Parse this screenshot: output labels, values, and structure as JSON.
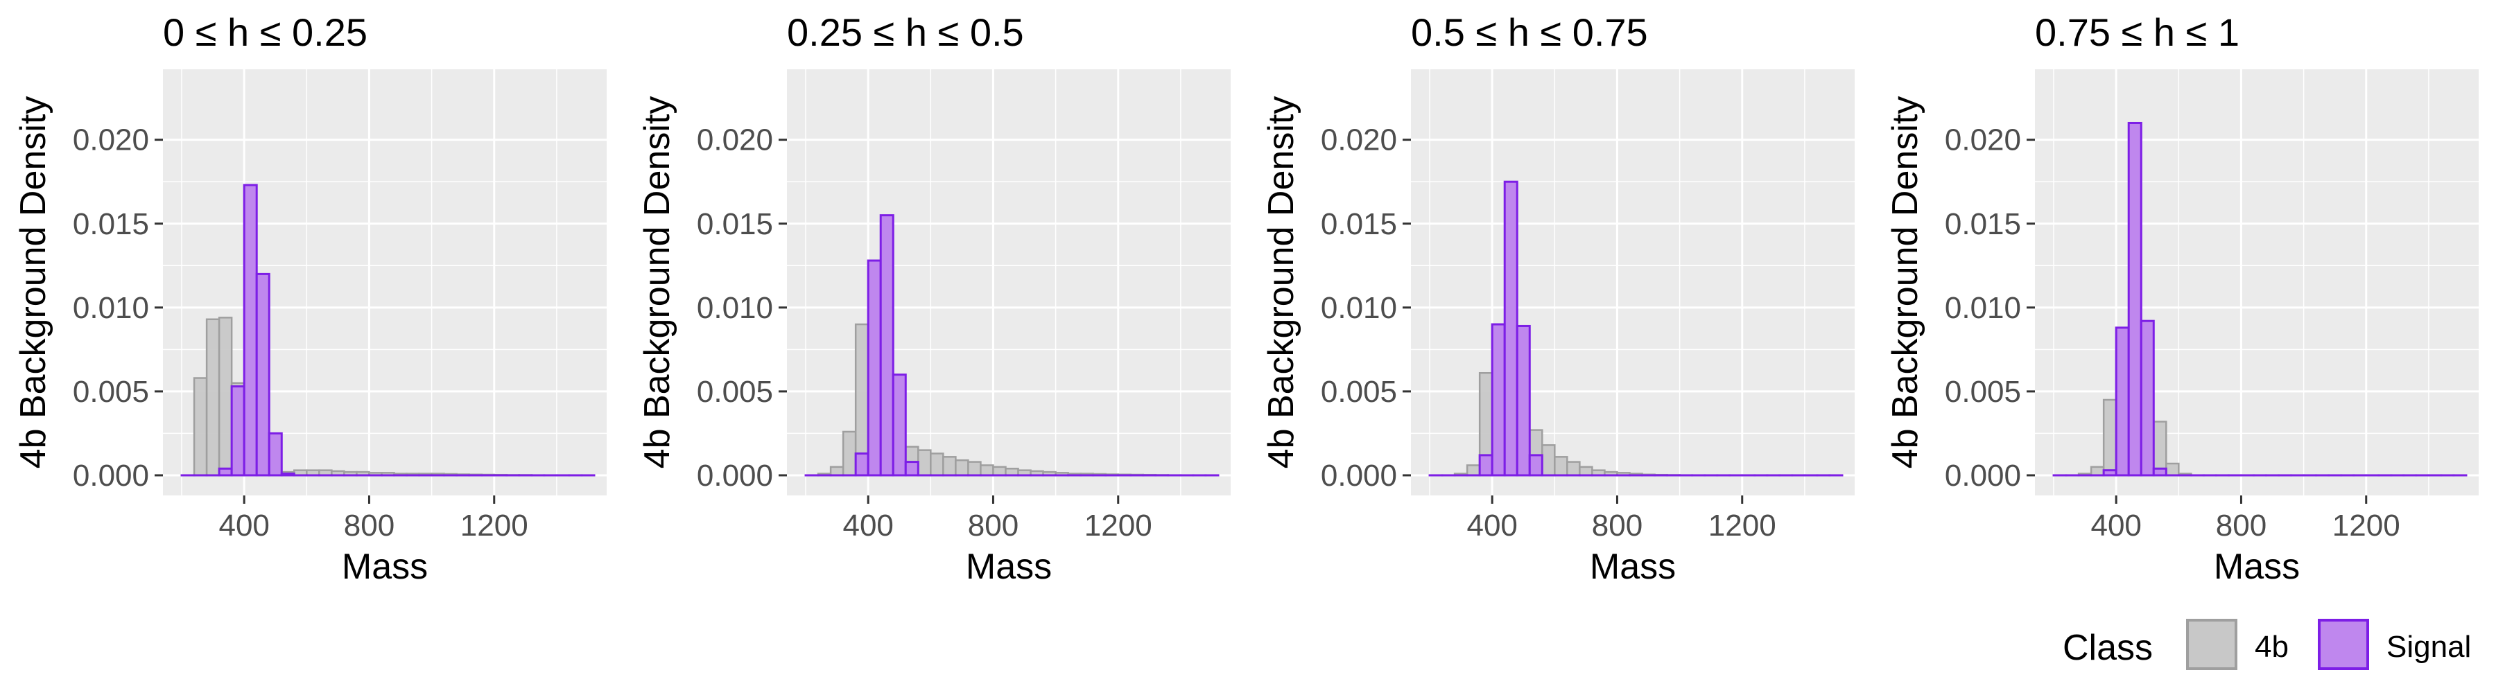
{
  "chart_data": {
    "type": "bar",
    "subtype": "faceted-histogram",
    "xlabel": "Mass",
    "ylabel": "4b Background Density",
    "xlim": [
      140,
      1560
    ],
    "ylim": [
      -0.0012,
      0.0242
    ],
    "xticks": [
      400,
      800,
      1200
    ],
    "xtick_labels": [
      "400",
      "800",
      "1200"
    ],
    "yticks": [
      0.0,
      0.005,
      0.01,
      0.015,
      0.02
    ],
    "ytick_labels": [
      "0.000",
      "0.005",
      "0.010",
      "0.015",
      "0.020"
    ],
    "grid": true,
    "bin_start": 200,
    "bin_width": 40,
    "colors": {
      "panel_bg": "#ebebeb",
      "grid": "#ffffff",
      "bg_fill": "#c8c8c8",
      "bg_stroke": "#9f9f9f",
      "sig_fill": "#bf87ee",
      "sig_stroke": "#7d1ee6"
    },
    "legend": {
      "title": "Class",
      "placement": "bottom-right",
      "entries": [
        {
          "label": "4b",
          "fill": "#c8c8c8",
          "stroke": "#9f9f9f"
        },
        {
          "label": "Signal",
          "fill": "#bf87ee",
          "stroke": "#7d1ee6"
        }
      ]
    },
    "panels": [
      {
        "title": "0 ≤ h ≤ 0.25",
        "series": [
          {
            "name": "4b",
            "values": [
              0.0,
              0.0058,
              0.0093,
              0.0094,
              0.0055,
              0.0025,
              0.0008,
              0.0003,
              0.0002,
              0.0003,
              0.0003,
              0.0003,
              0.00025,
              0.0002,
              0.0002,
              0.00015,
              0.00015,
              0.0001,
              0.0001,
              0.0001,
              0.0001,
              8e-05,
              6e-05,
              5e-05,
              4e-05,
              3e-05,
              2e-05,
              2e-05,
              1e-05,
              0.0,
              0.0,
              0.0,
              0.0
            ]
          },
          {
            "name": "Signal",
            "values": [
              0.0,
              0.0,
              0.0,
              0.0004,
              0.0053,
              0.0173,
              0.012,
              0.0025,
              0.0001,
              0.0,
              0.0,
              0.0,
              0.0,
              0.0,
              0.0,
              0.0,
              0.0,
              0.0,
              0.0,
              0.0,
              0.0,
              0.0,
              0.0,
              0.0,
              0.0,
              0.0,
              0.0,
              0.0,
              0.0,
              0.0,
              0.0,
              0.0,
              0.0
            ]
          }
        ]
      },
      {
        "title": "0.25 ≤ h ≤ 0.5",
        "series": [
          {
            "name": "4b",
            "values": [
              0.0,
              0.0001,
              0.0005,
              0.0026,
              0.009,
              0.0068,
              0.0032,
              0.002,
              0.0017,
              0.0015,
              0.0013,
              0.0011,
              0.0009,
              0.0008,
              0.0006,
              0.0005,
              0.0004,
              0.0003,
              0.00025,
              0.0002,
              0.00015,
              0.0001,
              0.0001,
              8e-05,
              6e-05,
              5e-05,
              4e-05,
              3e-05,
              2e-05,
              1e-05,
              0.0,
              0.0,
              0.0
            ]
          },
          {
            "name": "Signal",
            "values": [
              0.0,
              0.0,
              0.0,
              0.0,
              0.0013,
              0.0128,
              0.0155,
              0.006,
              0.0008,
              0.0,
              0.0,
              0.0,
              0.0,
              0.0,
              0.0,
              0.0,
              0.0,
              0.0,
              0.0,
              0.0,
              0.0,
              0.0,
              0.0,
              0.0,
              0.0,
              0.0,
              0.0,
              0.0,
              0.0,
              0.0,
              0.0,
              0.0,
              0.0
            ]
          }
        ]
      },
      {
        "title": "0.5 ≤ h ≤ 0.75",
        "series": [
          {
            "name": "4b",
            "values": [
              0.0,
              0.0,
              0.0001,
              0.0006,
              0.0061,
              0.0068,
              0.0052,
              0.0037,
              0.0027,
              0.0018,
              0.0011,
              0.0008,
              0.0005,
              0.0003,
              0.0002,
              0.00015,
              0.0001,
              5e-05,
              3e-05,
              2e-05,
              1e-05,
              0.0,
              0.0,
              0.0,
              0.0,
              0.0,
              0.0,
              0.0,
              0.0,
              0.0,
              0.0,
              0.0,
              0.0
            ]
          },
          {
            "name": "Signal",
            "values": [
              0.0,
              0.0,
              0.0,
              0.0,
              0.0012,
              0.009,
              0.0175,
              0.0089,
              0.0012,
              0.0,
              0.0,
              0.0,
              0.0,
              0.0,
              0.0,
              0.0,
              0.0,
              0.0,
              0.0,
              0.0,
              0.0,
              0.0,
              0.0,
              0.0,
              0.0,
              0.0,
              0.0,
              0.0,
              0.0,
              0.0,
              0.0,
              0.0,
              0.0
            ]
          }
        ]
      },
      {
        "title": "0.75 ≤ h ≤ 1",
        "series": [
          {
            "name": "4b",
            "values": [
              0.0,
              0.0,
              0.0001,
              0.0005,
              0.0045,
              0.0075,
              0.0115,
              0.0059,
              0.0032,
              0.0007,
              0.0001,
              0.0,
              0.0,
              0.0,
              0.0,
              0.0,
              0.0,
              0.0,
              0.0,
              0.0,
              0.0,
              0.0,
              0.0,
              0.0,
              0.0,
              0.0,
              0.0,
              0.0,
              0.0,
              0.0,
              0.0,
              0.0,
              0.0
            ]
          },
          {
            "name": "Signal",
            "values": [
              0.0,
              0.0,
              0.0,
              0.0,
              0.0003,
              0.0088,
              0.021,
              0.0092,
              0.0004,
              0.0,
              0.0,
              0.0,
              0.0,
              0.0,
              0.0,
              0.0,
              0.0,
              0.0,
              0.0,
              0.0,
              0.0,
              0.0,
              0.0,
              0.0,
              0.0,
              0.0,
              0.0,
              0.0,
              0.0,
              0.0,
              0.0,
              0.0,
              0.0
            ]
          }
        ]
      }
    ]
  }
}
